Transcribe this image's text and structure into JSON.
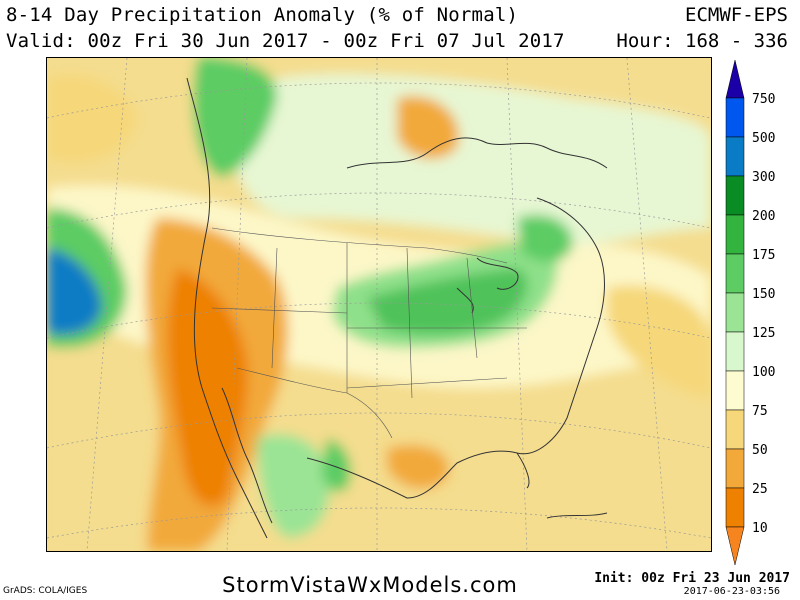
{
  "header": {
    "title": "8-14 Day Precipitation Anomaly (% of Normal)",
    "valid": "Valid: 00z Fri 30 Jun 2017 - 00z Fri 07 Jul 2017",
    "model": "ECMWF-EPS",
    "hour": "Hour: 168 - 336"
  },
  "legend": {
    "labels": [
      "750",
      "500",
      "300",
      "200",
      "175",
      "150",
      "125",
      "100",
      "75",
      "50",
      "25",
      "10"
    ],
    "colors": [
      "#1a00a6",
      "#0057f0",
      "#0a7cc5",
      "#0a8c24",
      "#33b43e",
      "#5ccc63",
      "#9be495",
      "#d9f7cc",
      "#fdfbd0",
      "#f6d779",
      "#f2a93a",
      "#ee8100",
      "#f7851f"
    ]
  },
  "footer": {
    "site": "StormVistaWxModels.com",
    "credit": "GrADS: COLA/IGES",
    "init": "Init: 00z Fri 23 Jun 2017",
    "timestamp": "2017-06-23-03:56"
  }
}
